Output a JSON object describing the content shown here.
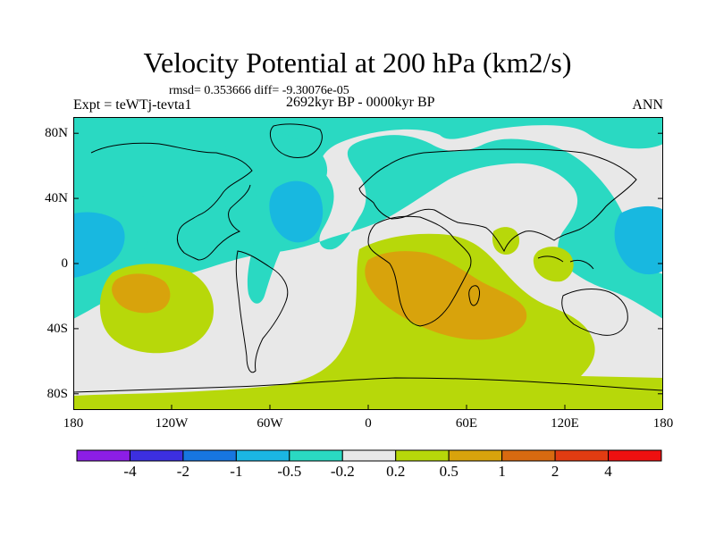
{
  "title": "Velocity Potential at 200 hPa (km2/s)",
  "stats_line": "rmsd= 0.353666 diff= -9.30076e-05",
  "left_label": "Expt = teWTj-tevta1",
  "center_label": "2692kyr BP - 0000kyr BP",
  "right_label": "ANN",
  "map": {
    "projection": "cylindrical-equidistant",
    "lon_range": [
      -180,
      180
    ],
    "lat_range": [
      -90,
      90
    ],
    "lat_ticks": [
      "80N",
      "40N",
      "0",
      "40S",
      "80S"
    ],
    "lon_ticks": [
      "180",
      "120W",
      "60W",
      "0",
      "60E",
      "120E",
      "180"
    ],
    "fill_colors": {
      "below_neg_0_2": "#2ad9c2",
      "neg_0_2_to_0_2": "#e8e8e8",
      "above_0_2": "#b7d80a",
      "above_0_5": "#d8a30c",
      "neg_0_5_to_neg_1": "#18b8e0"
    }
  },
  "colorbar": {
    "labels": [
      "-4",
      "-2",
      "-1",
      "-0.5",
      "-0.2",
      "0.2",
      "0.5",
      "1",
      "2",
      "4"
    ],
    "colors": [
      "#8c1ee6",
      "#3c2fe0",
      "#1776e0",
      "#1bb6e3",
      "#2ad9c2",
      "#e8e8e8",
      "#b7d80a",
      "#d8a30c",
      "#d86a10",
      "#e23c12",
      "#ee1010"
    ]
  }
}
